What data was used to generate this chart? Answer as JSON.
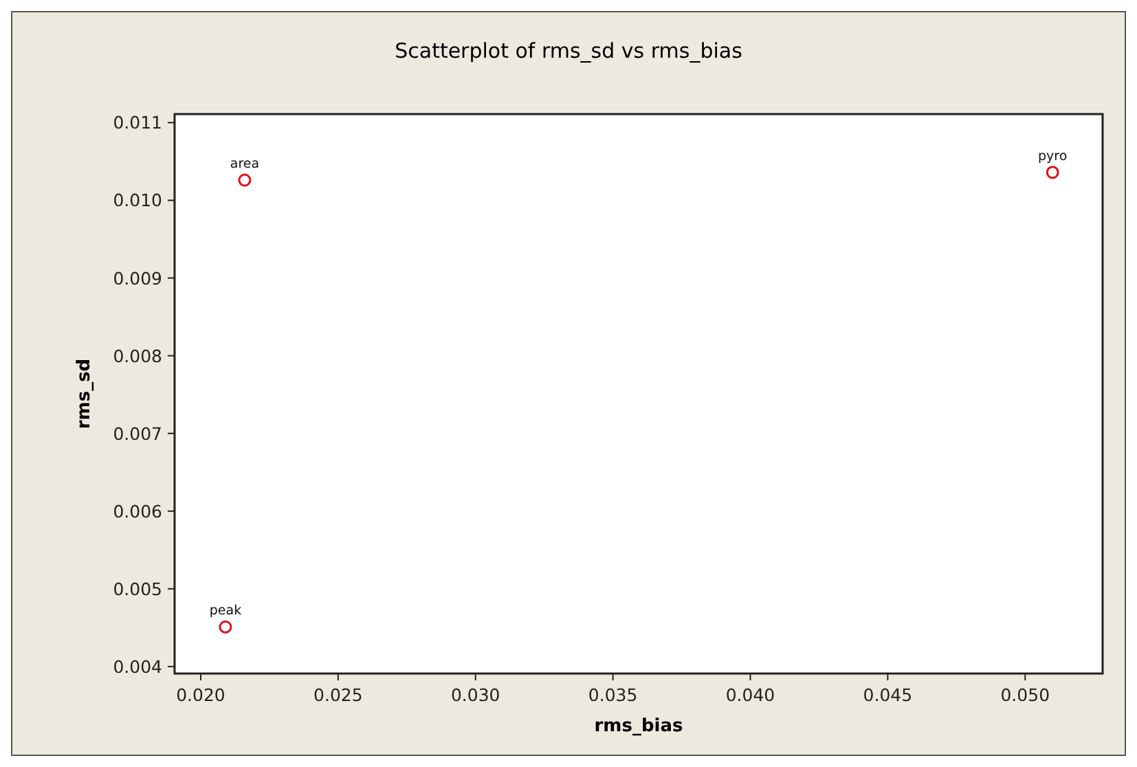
{
  "chart_data": {
    "type": "scatter",
    "title": "Scatterplot of rms_sd vs rms_bias",
    "xlabel": "rms_bias",
    "ylabel": "rms_sd",
    "x": [
      0.0216,
      0.0209,
      0.051
    ],
    "series": [
      {
        "color": "#e0101a",
        "values": [
          0.01026,
          0.00451,
          0.01036
        ]
      }
    ],
    "marker": "circle",
    "annotations": [
      {
        "text": "area",
        "x": 0.0216,
        "y": 0.01026
      },
      {
        "text": "peak",
        "x": 0.0209,
        "y": 0.00451
      },
      {
        "text": "pyro",
        "x": 0.051,
        "y": 0.01036
      }
    ],
    "xlim": [
      0.01905,
      0.05282
    ],
    "xticks": [
      {
        "value": 0.02,
        "label": "0.020"
      },
      {
        "value": 0.025,
        "label": "0.025"
      },
      {
        "value": 0.03,
        "label": "0.030"
      },
      {
        "value": 0.035,
        "label": "0.035"
      },
      {
        "value": 0.04,
        "label": "0.040"
      },
      {
        "value": 0.045,
        "label": "0.045"
      },
      {
        "value": 0.05,
        "label": "0.050"
      }
    ],
    "ylim": [
      0.00391,
      0.01111
    ],
    "yticks": [
      {
        "value": 0.004,
        "label": "0.004"
      },
      {
        "value": 0.005,
        "label": "0.005"
      },
      {
        "value": 0.006,
        "label": "0.006"
      },
      {
        "value": 0.007,
        "label": "0.007"
      },
      {
        "value": 0.008,
        "label": "0.008"
      },
      {
        "value": 0.009,
        "label": "0.009"
      },
      {
        "value": 0.01,
        "label": "0.010"
      },
      {
        "value": 0.011,
        "label": "0.011"
      }
    ],
    "grid": false
  }
}
